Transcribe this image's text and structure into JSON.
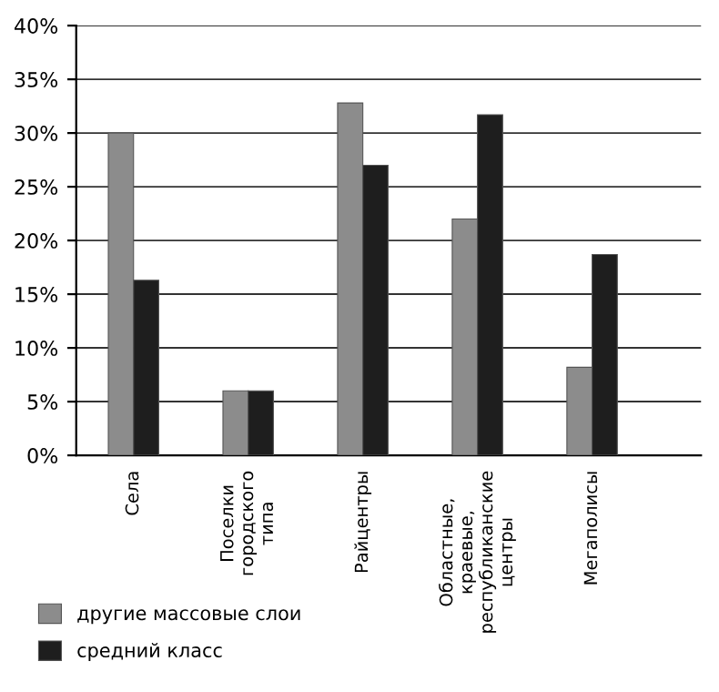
{
  "chart_data": {
    "type": "bar",
    "categories": [
      "Села",
      "Поселки\nгородского\nтипа",
      "Райцентры",
      "Областные,\nкраевые,\nреспубликанские\nцентры",
      "Мегаполисы"
    ],
    "series": [
      {
        "name": "другие массовые слои",
        "color": "#8c8c8c",
        "values": [
          30,
          6,
          32.8,
          22,
          8.2
        ]
      },
      {
        "name": "средний класс",
        "color": "#1e1e1e",
        "values": [
          16.3,
          6,
          27,
          31.7,
          18.7
        ]
      }
    ],
    "ylim": [
      0,
      40
    ],
    "yticks": [
      {
        "value": 0,
        "label": "0%"
      },
      {
        "value": 5,
        "label": "5%"
      },
      {
        "value": 10,
        "label": "10%"
      },
      {
        "value": 15,
        "label": "15%"
      },
      {
        "value": 20,
        "label": "20%"
      },
      {
        "value": 25,
        "label": "25%"
      },
      {
        "value": 30,
        "label": "30%"
      },
      {
        "value": 35,
        "label": "35%"
      },
      {
        "value": 40,
        "label": "40%"
      }
    ],
    "grid": "y",
    "legend": "bottom left"
  }
}
